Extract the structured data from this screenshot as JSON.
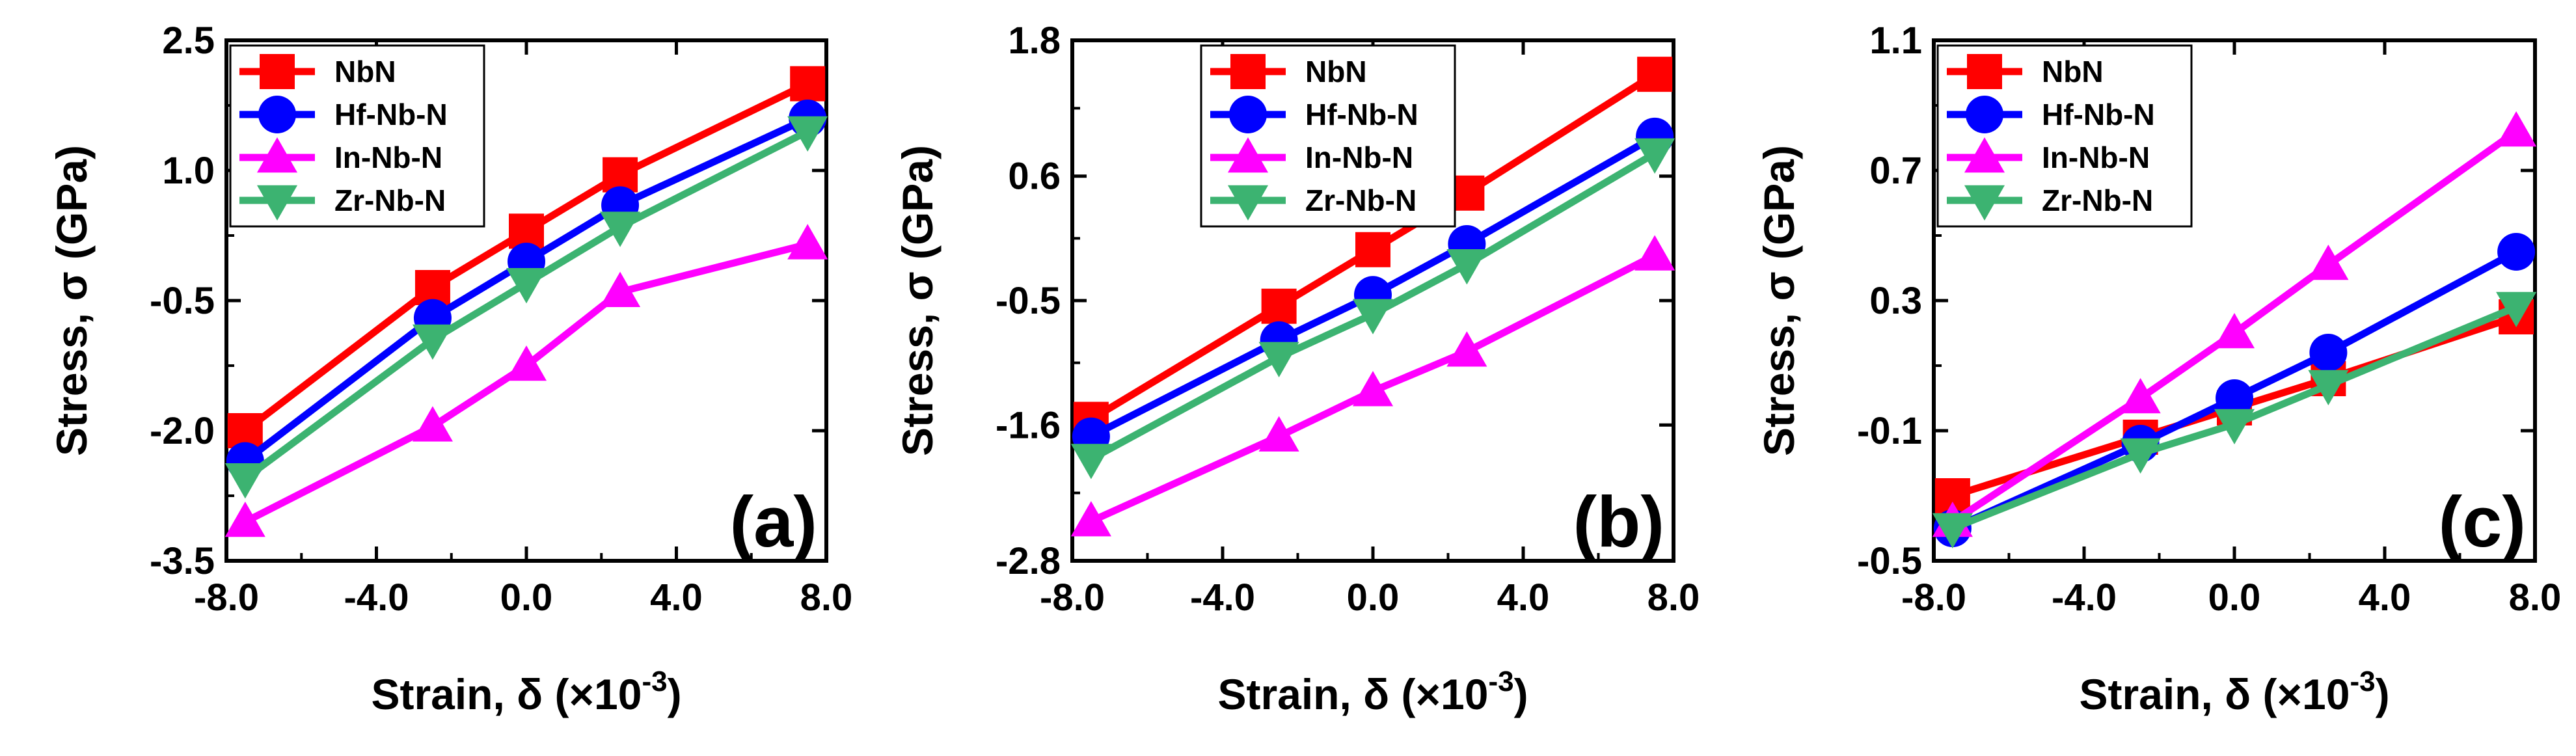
{
  "chart_data": [
    {
      "type": "line",
      "panel_label": "(a)",
      "xlabel": "Strain, δ (×10",
      "xlabel_exponent": "-3",
      "xlabel_close": ")",
      "ylabel": "Stress, σ (GPa)",
      "xlim": [
        -8.0,
        8.0
      ],
      "ylim": [
        -3.5,
        2.5
      ],
      "xticks": [
        "-8.0",
        "-4.0",
        "0.0",
        "4.0",
        "8.0"
      ],
      "yticks": [
        "-3.5",
        "-2.0",
        "-0.5",
        "1.0",
        "2.5"
      ],
      "x": [
        -7.5,
        -2.5,
        0.0,
        2.5,
        7.5
      ],
      "legend_position": "top-left",
      "series": [
        {
          "name": "NbN",
          "color": "#ff0000",
          "marker": "square",
          "values": [
            -2.0,
            -0.35,
            0.3,
            0.95,
            2.0
          ]
        },
        {
          "name": "Hf-Nb-N",
          "color": "#0000ff",
          "marker": "circle",
          "values": [
            -2.35,
            -0.7,
            -0.05,
            0.6,
            1.6
          ]
        },
        {
          "name": "In-Nb-N",
          "color": "#ff00ff",
          "marker": "triangle-up",
          "values": [
            -3.05,
            -1.95,
            -1.25,
            -0.4,
            0.15
          ]
        },
        {
          "name": "Zr-Nb-N",
          "color": "#3cb371",
          "marker": "triangle-down",
          "values": [
            -2.55,
            -0.95,
            -0.3,
            0.35,
            1.45
          ]
        }
      ]
    },
    {
      "type": "line",
      "panel_label": "(b)",
      "xlabel": "Strain, δ (×10",
      "xlabel_exponent": "-3",
      "xlabel_close": ")",
      "ylabel": "Stress, σ (GPa)",
      "xlim": [
        -8.0,
        8.0
      ],
      "ylim": [
        -2.8,
        1.8
      ],
      "xticks": [
        "-8.0",
        "-4.0",
        "0.0",
        "4.0",
        "8.0"
      ],
      "yticks": [
        "-2.8",
        "-1.6",
        "-0.5",
        "0.6",
        "1.8"
      ],
      "x": [
        -7.5,
        -2.5,
        0.0,
        2.5,
        7.5
      ],
      "legend_position": "top-right",
      "series": [
        {
          "name": "NbN",
          "color": "#ff0000",
          "marker": "square",
          "values": [
            -1.55,
            -0.55,
            -0.05,
            0.45,
            1.5
          ]
        },
        {
          "name": "Hf-Nb-N",
          "color": "#0000ff",
          "marker": "circle",
          "values": [
            -1.7,
            -0.85,
            -0.45,
            0.0,
            0.95
          ]
        },
        {
          "name": "In-Nb-N",
          "color": "#ff00ff",
          "marker": "triangle-up",
          "values": [
            -2.45,
            -1.7,
            -1.3,
            -0.95,
            -0.1
          ]
        },
        {
          "name": "Zr-Nb-N",
          "color": "#3cb371",
          "marker": "triangle-down",
          "values": [
            -1.9,
            -1.0,
            -0.62,
            -0.18,
            0.8
          ]
        }
      ]
    },
    {
      "type": "line",
      "panel_label": "(c)",
      "xlabel": "Strain, δ (×10",
      "xlabel_exponent": "-3",
      "xlabel_close": ")",
      "ylabel": "Stress, σ (GPa)",
      "xlim": [
        -8.0,
        8.0
      ],
      "ylim": [
        -0.5,
        1.1
      ],
      "xticks": [
        "-8.0",
        "-4.0",
        "0.0",
        "4.0",
        "8.0"
      ],
      "yticks": [
        "-0.5",
        "-0.1",
        "0.3",
        "0.7",
        "1.1"
      ],
      "x": [
        -7.5,
        -2.5,
        0.0,
        2.5,
        7.5
      ],
      "legend_position": "top-left",
      "series": [
        {
          "name": "NbN",
          "color": "#ff0000",
          "marker": "square",
          "values": [
            -0.3,
            -0.12,
            -0.03,
            0.06,
            0.25
          ]
        },
        {
          "name": "Hf-Nb-N",
          "color": "#0000ff",
          "marker": "circle",
          "values": [
            -0.4,
            -0.14,
            0.0,
            0.14,
            0.45
          ]
        },
        {
          "name": "In-Nb-N",
          "color": "#ff00ff",
          "marker": "triangle-up",
          "values": [
            -0.38,
            0.0,
            0.2,
            0.41,
            0.82
          ]
        },
        {
          "name": "Zr-Nb-N",
          "color": "#3cb371",
          "marker": "triangle-down",
          "values": [
            -0.4,
            -0.17,
            -0.08,
            0.04,
            0.28
          ]
        }
      ]
    }
  ]
}
